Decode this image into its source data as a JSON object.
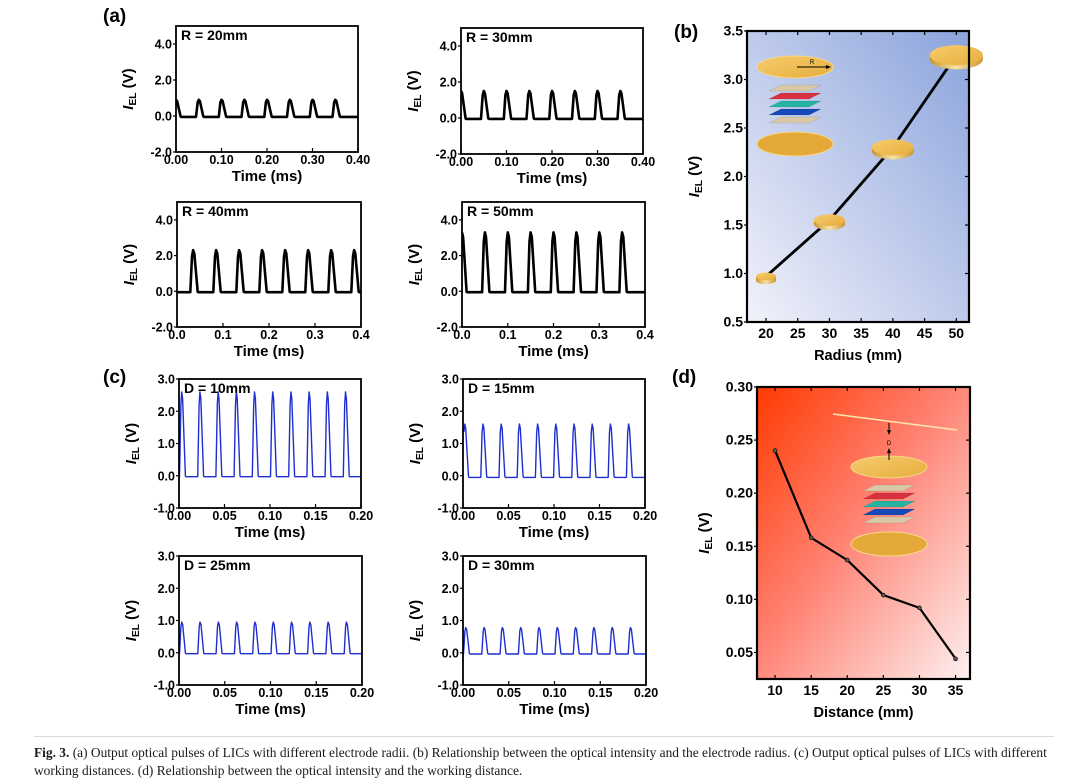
{
  "figure": {
    "caption_label": "Fig. 3.",
    "caption_text": "(a) Output optical pulses of LICs with different electrode radii. (b) Relationship between the optical intensity and the electrode radius. (c) Output optical pulses of LICs with different working distances. (d) Relationship between the optical intensity and the working distance."
  },
  "colors": {
    "pulse_black": "#000000",
    "pulse_blue": "#1f2fcf",
    "panel_b_gradient": [
      "#eef0fa",
      "#8ea6dc"
    ],
    "panel_d_gradient": [
      "#ff3a00",
      "#fdeaea"
    ],
    "gold": "#f0b949",
    "gold_dark": "#c9952b"
  },
  "chart_data": [
    {
      "panel": "(a)",
      "id": "a-R20",
      "type": "line",
      "annotation": "R = 20mm",
      "xlabel": "Time (ms)",
      "ylabel": "I_EL (V)",
      "xlim": [
        0,
        0.4
      ],
      "ylim": [
        -2.0,
        5.0
      ],
      "xticks": [
        "0.00",
        "0.10",
        "0.20",
        "0.30",
        "0.40"
      ],
      "xtick_values": [
        0,
        0.1,
        0.2,
        0.3,
        0.4
      ],
      "yticks": [
        "-2.0",
        "0.0",
        "2.0",
        "4.0"
      ],
      "ytick_values": [
        -2,
        0,
        2,
        4
      ],
      "color": "#000000",
      "pulse": {
        "period": 0.05,
        "first_peak": 0.0,
        "peak": 0.9,
        "baseline": -0.05,
        "count": 8
      }
    },
    {
      "panel": "(a)",
      "id": "a-R30",
      "type": "line",
      "annotation": "R = 30mm",
      "xlabel": "Time (ms)",
      "ylabel": "I_EL (V)",
      "xlim": [
        0,
        0.4
      ],
      "ylim": [
        -2.0,
        5.0
      ],
      "xticks": [
        "0.00",
        "0.10",
        "0.20",
        "0.30",
        "0.40"
      ],
      "xtick_values": [
        0,
        0.1,
        0.2,
        0.3,
        0.4
      ],
      "yticks": [
        "-2.0",
        "0.0",
        "2.0",
        "4.0"
      ],
      "ytick_values": [
        -2,
        0,
        2,
        4
      ],
      "color": "#000000",
      "pulse": {
        "period": 0.05,
        "first_peak": 0.0,
        "peak": 1.5,
        "baseline": -0.05,
        "count": 8
      }
    },
    {
      "panel": "(a)",
      "id": "a-R40",
      "type": "line",
      "annotation": "R = 40mm",
      "xlabel": "Time (ms)",
      "ylabel": "I_EL (V)",
      "xlim": [
        0,
        0.4
      ],
      "ylim": [
        -2.0,
        5.0
      ],
      "xticks": [
        "0.0",
        "0.1",
        "0.2",
        "0.3",
        "0.4"
      ],
      "xtick_values": [
        0,
        0.1,
        0.2,
        0.3,
        0.4
      ],
      "yticks": [
        "-2.0",
        "0.0",
        "2.0",
        "4.0"
      ],
      "ytick_values": [
        -2,
        0,
        2,
        4
      ],
      "color": "#000000",
      "pulse": {
        "period": 0.05,
        "first_peak": 0.035,
        "peak": 2.3,
        "baseline": -0.05,
        "count": 8
      }
    },
    {
      "panel": "(a)",
      "id": "a-R50",
      "type": "line",
      "annotation": "R = 50mm",
      "xlabel": "Time (ms)",
      "ylabel": "I_EL (V)",
      "xlim": [
        0,
        0.4
      ],
      "ylim": [
        -2.0,
        5.0
      ],
      "xticks": [
        "0.0",
        "0.1",
        "0.2",
        "0.3",
        "0.4"
      ],
      "xtick_values": [
        0,
        0.1,
        0.2,
        0.3,
        0.4
      ],
      "yticks": [
        "-2.0",
        "0.0",
        "2.0",
        "4.0"
      ],
      "ytick_values": [
        -2,
        0,
        2,
        4
      ],
      "color": "#000000",
      "pulse": {
        "period": 0.05,
        "first_peak": 0.0,
        "peak": 3.3,
        "baseline": -0.05,
        "count": 8
      }
    },
    {
      "panel": "(b)",
      "id": "b",
      "type": "line",
      "xlabel": "Radius (mm)",
      "ylabel": "I_EL (V)",
      "xlim": [
        17,
        52
      ],
      "ylim": [
        0.5,
        3.5
      ],
      "xticks": [
        "20",
        "25",
        "30",
        "35",
        "40",
        "45",
        "50"
      ],
      "xtick_values": [
        20,
        25,
        30,
        35,
        40,
        45,
        50
      ],
      "yticks": [
        "0.5",
        "1.0",
        "1.5",
        "2.0",
        "2.5",
        "3.0",
        "3.5"
      ],
      "ytick_values": [
        0.5,
        1.0,
        1.5,
        2.0,
        2.5,
        3.0,
        3.5
      ],
      "x": [
        20,
        30,
        40,
        50
      ],
      "y": [
        0.97,
        1.55,
        2.3,
        3.25
      ],
      "color": "#000000",
      "inset_label": "R"
    },
    {
      "panel": "(c)",
      "id": "c-D10",
      "type": "line",
      "annotation": "D = 10mm",
      "xlabel": "Time (ms)",
      "ylabel": "I_EL (V)",
      "xlim": [
        0,
        0.2
      ],
      "ylim": [
        -1.0,
        3.0
      ],
      "xticks": [
        "0.00",
        "0.05",
        "0.10",
        "0.15",
        "0.20"
      ],
      "xtick_values": [
        0,
        0.05,
        0.1,
        0.15,
        0.2
      ],
      "yticks": [
        "-1.0",
        "0.0",
        "1.0",
        "2.0",
        "3.0"
      ],
      "ytick_values": [
        -1,
        0,
        1,
        2,
        3
      ],
      "color": "#1f2fcf",
      "pulse": {
        "period": 0.02,
        "first_peak": 0.003,
        "peak": 2.6,
        "baseline": -0.03,
        "count": 10
      }
    },
    {
      "panel": "(c)",
      "id": "c-D15",
      "type": "line",
      "annotation": "D = 15mm",
      "xlabel": "Time (ms)",
      "ylabel": "I_EL (V)",
      "xlim": [
        0,
        0.2
      ],
      "ylim": [
        -1.0,
        3.0
      ],
      "xticks": [
        "0.00",
        "0.05",
        "0.10",
        "0.15",
        "0.20"
      ],
      "xtick_values": [
        0,
        0.05,
        0.1,
        0.15,
        0.2
      ],
      "yticks": [
        "-1.0",
        "0.0",
        "1.0",
        "2.0",
        "3.0"
      ],
      "ytick_values": [
        -1,
        0,
        1,
        2,
        3
      ],
      "color": "#1f2fcf",
      "pulse": {
        "period": 0.02,
        "first_peak": 0.002,
        "peak": 1.6,
        "baseline": -0.05,
        "count": 10
      }
    },
    {
      "panel": "(c)",
      "id": "c-D25",
      "type": "line",
      "annotation": "D = 25mm",
      "xlabel": "Time (ms)",
      "ylabel": "I_EL (V)",
      "xlim": [
        0,
        0.2
      ],
      "ylim": [
        -1.0,
        3.0
      ],
      "xticks": [
        "0.00",
        "0.05",
        "0.10",
        "0.15",
        "0.20"
      ],
      "xtick_values": [
        0,
        0.05,
        0.1,
        0.15,
        0.2
      ],
      "yticks": [
        "-1.0",
        "0.0",
        "1.0",
        "2.0",
        "3.0"
      ],
      "ytick_values": [
        -1,
        0,
        1,
        2,
        3
      ],
      "color": "#1f2fcf",
      "pulse": {
        "period": 0.02,
        "first_peak": 0.003,
        "peak": 0.95,
        "baseline": -0.03,
        "count": 10
      }
    },
    {
      "panel": "(c)",
      "id": "c-D30",
      "type": "line",
      "annotation": "D = 30mm",
      "xlabel": "Time (ms)",
      "ylabel": "I_EL (V)",
      "xlim": [
        0,
        0.2
      ],
      "ylim": [
        -1.0,
        3.0
      ],
      "xticks": [
        "0.00",
        "0.05",
        "0.10",
        "0.15",
        "0.20"
      ],
      "xtick_values": [
        0,
        0.05,
        0.1,
        0.15,
        0.2
      ],
      "yticks": [
        "-1.0",
        "0.0",
        "1.0",
        "2.0",
        "3.0"
      ],
      "ytick_values": [
        -1,
        0,
        1,
        2,
        3
      ],
      "color": "#1f2fcf",
      "pulse": {
        "period": 0.02,
        "first_peak": 0.003,
        "peak": 0.78,
        "baseline": -0.04,
        "count": 10
      }
    },
    {
      "panel": "(d)",
      "id": "d",
      "type": "line",
      "xlabel": "Distance (mm)",
      "ylabel": "I_EL (V)",
      "xlim": [
        7.5,
        37
      ],
      "ylim": [
        0.025,
        0.3
      ],
      "xticks": [
        "10",
        "15",
        "20",
        "25",
        "30",
        "35"
      ],
      "xtick_values": [
        10,
        15,
        20,
        25,
        30,
        35
      ],
      "yticks": [
        "0.05",
        "0.10",
        "0.15",
        "0.20",
        "0.25",
        "0.30"
      ],
      "ytick_values": [
        0.05,
        0.1,
        0.15,
        0.2,
        0.25,
        0.3
      ],
      "x": [
        10,
        15,
        20,
        25,
        30,
        35
      ],
      "y": [
        0.24,
        0.158,
        0.137,
        0.104,
        0.092,
        0.044
      ],
      "color": "#000000",
      "inset_label": "D"
    }
  ],
  "panel_labels": [
    "(a)",
    "(b)",
    "(c)",
    "(d)"
  ]
}
